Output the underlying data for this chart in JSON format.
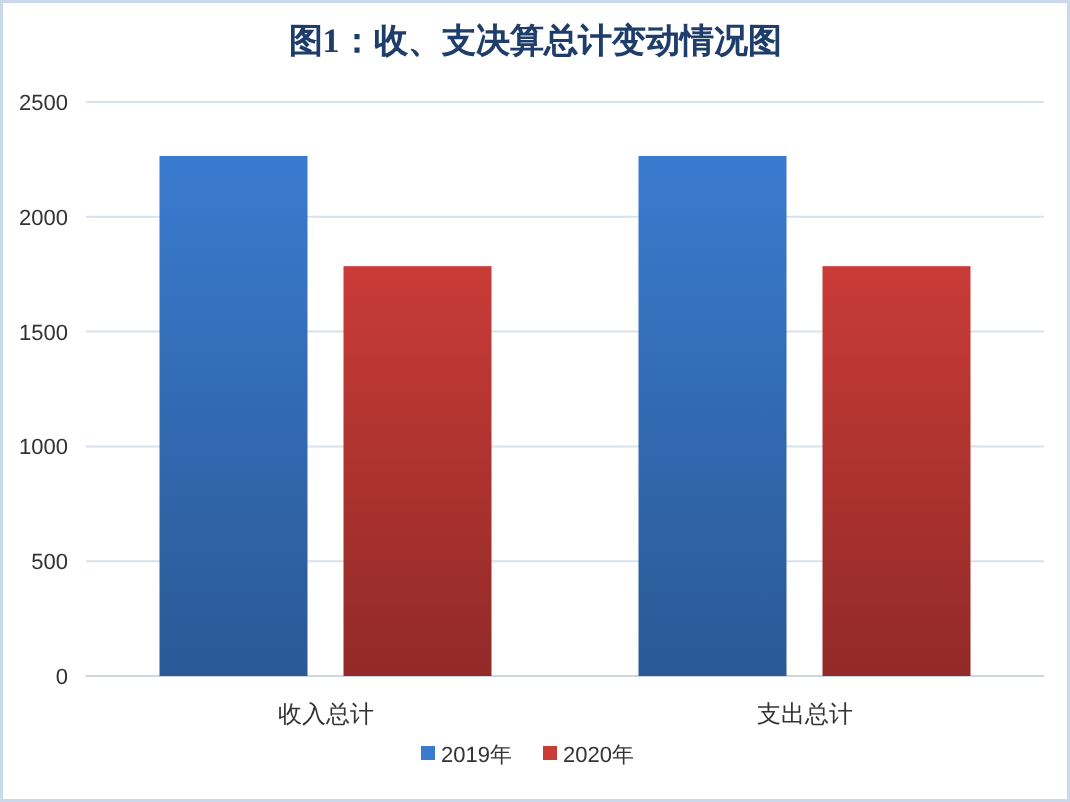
{
  "chart_data": {
    "type": "bar",
    "title": "图1：收、支决算总计变动情况图",
    "categories": [
      "收入总计",
      "支出总计"
    ],
    "series": [
      {
        "name": "2019年",
        "color": "#3a7bcf",
        "values": [
          2265,
          2265
        ]
      },
      {
        "name": "2020年",
        "color": "#c93b37",
        "values": [
          1785,
          1785
        ]
      }
    ],
    "ylim": [
      0,
      2500
    ],
    "yticks": [
      0,
      500,
      1000,
      1500,
      2000,
      2500
    ],
    "grid": "y",
    "legend": "bottom"
  }
}
